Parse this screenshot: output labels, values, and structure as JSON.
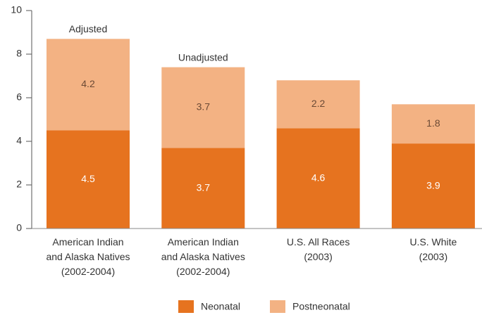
{
  "chart_data": {
    "type": "stacked_bar",
    "categories": [
      "American Indian\nand Alaska Natives\n(2002-2004)",
      "American Indian\nand Alaska Natives\n(2002-2004)",
      "U.S. All Races\n(2003)",
      "U.S. White\n(2003)"
    ],
    "series": [
      {
        "name": "Neonatal",
        "color": "#e6731f",
        "values": [
          4.5,
          3.7,
          4.6,
          3.9
        ]
      },
      {
        "name": "Postneonatal",
        "color": "#f3b283",
        "values": [
          4.2,
          3.7,
          2.2,
          1.8
        ]
      }
    ],
    "annotations": [
      {
        "text": "Adjusted",
        "category": 0
      },
      {
        "text": "Unadjusted",
        "category": 1
      }
    ],
    "ylim": [
      0,
      10
    ],
    "yticks": [
      0,
      2,
      4,
      6,
      8,
      10
    ]
  }
}
